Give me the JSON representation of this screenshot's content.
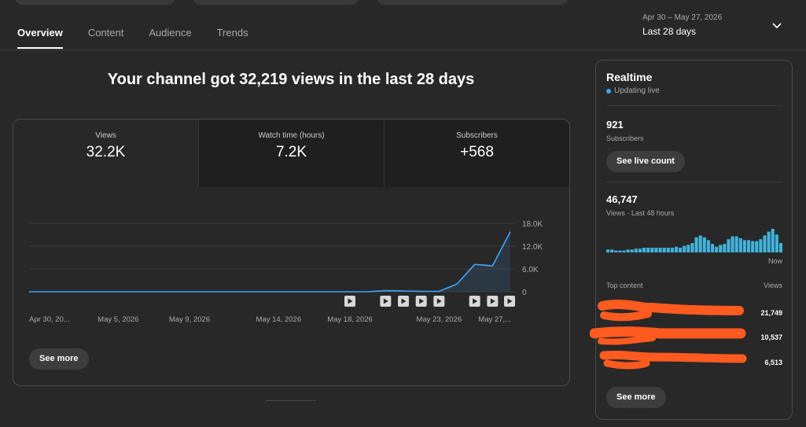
{
  "tabs": [
    {
      "label": "Overview",
      "active": true
    },
    {
      "label": "Content",
      "active": false
    },
    {
      "label": "Audience",
      "active": false
    },
    {
      "label": "Trends",
      "active": false
    }
  ],
  "date_range": {
    "dates": "Apr 30 – May 27, 2026",
    "label": "Last 28 days",
    "icon": "chevron-down-icon"
  },
  "headline": "Your channel got 32,219 views in the last 28 days",
  "metrics": [
    {
      "label": "Views",
      "value": "32.2K",
      "active": true
    },
    {
      "label": "Watch time (hours)",
      "value": "7.2K",
      "active": false
    },
    {
      "label": "Subscribers",
      "value": "+568",
      "active": false
    }
  ],
  "chart_data": {
    "type": "area",
    "x": [
      "Apr 30",
      "May 1",
      "May 2",
      "May 3",
      "May 4",
      "May 5",
      "May 6",
      "May 7",
      "May 8",
      "May 9",
      "May 10",
      "May 11",
      "May 12",
      "May 13",
      "May 14",
      "May 15",
      "May 16",
      "May 17",
      "May 18",
      "May 19",
      "May 20",
      "May 21",
      "May 22",
      "May 23",
      "May 24",
      "May 25",
      "May 26",
      "May 27"
    ],
    "values": [
      0,
      0,
      0,
      0,
      0,
      0,
      0,
      0,
      0,
      0,
      0,
      0,
      0,
      0,
      0,
      0,
      0,
      0,
      0,
      0,
      300,
      200,
      100,
      100,
      2000,
      7200,
      6800,
      15800
    ],
    "x_tick_labels": [
      "Apr 30, 20...",
      "May 5, 2026",
      "May 9, 2026",
      "May 14, 2026",
      "May 18, 2026",
      "May 23, 2026",
      "May 27,..."
    ],
    "x_tick_dates": [
      "Apr 30",
      "May 5",
      "May 9",
      "May 14",
      "May 18",
      "May 23",
      "May 27"
    ],
    "y_ticks": [
      "0",
      "6.0K",
      "12.0K",
      "18.0K"
    ],
    "ylim": [
      0,
      18000
    ],
    "video_markers": [
      "May 18",
      "May 20",
      "May 21",
      "May 22",
      "May 23",
      "May 25",
      "May 26",
      "May 27"
    ],
    "marker_icon": "video-marker-icon",
    "line_color": "#3ea6ff",
    "grid": true
  },
  "see_more_label": "See more",
  "realtime": {
    "title": "Realtime",
    "live_label": "Updating live",
    "live_color": "#3ea6ff",
    "subscribers_value": "921",
    "subscribers_label": "Subscribers",
    "live_count_button": "See live count",
    "views_value": "46,747",
    "views_label": "Views · Last 48 hours",
    "hourly_views": [
      3,
      3,
      2,
      2,
      2,
      3,
      3,
      4,
      4,
      5,
      5,
      5,
      5,
      5,
      5,
      5,
      5,
      6,
      5,
      7,
      8,
      10,
      16,
      18,
      16,
      13,
      9,
      6,
      8,
      9,
      14,
      17,
      17,
      15,
      13,
      13,
      12,
      12,
      14,
      18,
      22,
      25,
      19,
      10
    ],
    "now_label": "Now",
    "top_content_label": "Top content",
    "views_column_label": "Views",
    "top_content": [
      {
        "value": "21,749"
      },
      {
        "value": "10,537"
      },
      {
        "value": "6,513"
      }
    ],
    "see_more_label": "See more"
  }
}
